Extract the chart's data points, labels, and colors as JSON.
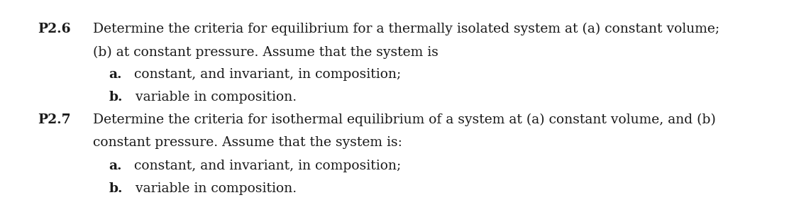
{
  "background_color": "#ffffff",
  "figsize": [
    11.12,
    2.82
  ],
  "dpi": 100,
  "font_family": "serif",
  "font_size": 13.5,
  "text_color": "#1a1a1a",
  "blocks": [
    {
      "label": "P2.6",
      "label_fx": 0.048,
      "label_fy": 0.87,
      "lines": [
        {
          "fx": 0.118,
          "fy": 0.87,
          "parts": [
            {
              "text": "Determine the criteria for equilibrium for a thermally isolated system at (a) constant volume;",
              "bold": false
            }
          ]
        },
        {
          "fx": 0.118,
          "fy": 0.685,
          "parts": [
            {
              "text": "(b) at constant pressure. Assume that the system is",
              "bold": false
            }
          ]
        },
        {
          "fx": 0.138,
          "fy": 0.505,
          "parts": [
            {
              "text": "a.",
              "bold": true
            },
            {
              "text": "  constant, and invariant, in composition;",
              "bold": false
            }
          ]
        },
        {
          "fx": 0.138,
          "fy": 0.325,
          "parts": [
            {
              "text": "b.",
              "bold": true
            },
            {
              "text": "  variable in composition.",
              "bold": false
            }
          ]
        }
      ]
    },
    {
      "label": "P2.7",
      "label_fx": 0.048,
      "label_fy": 0.145,
      "lines": [
        {
          "fx": 0.118,
          "fy": 0.145,
          "parts": [
            {
              "text": "Determine the criteria for isothermal equilibrium of a system at (a) constant volume, and (b)",
              "bold": false
            }
          ]
        },
        {
          "fx": 0.118,
          "fy": -0.04,
          "parts": [
            {
              "text": "constant pressure. Assume that the system is:",
              "bold": false
            }
          ]
        },
        {
          "fx": 0.138,
          "fy": -0.225,
          "parts": [
            {
              "text": "a.",
              "bold": true
            },
            {
              "text": "  constant, and invariant, in composition;",
              "bold": false
            }
          ]
        },
        {
          "fx": 0.138,
          "fy": -0.41,
          "parts": [
            {
              "text": "b.",
              "bold": true
            },
            {
              "text": "  variable in composition.",
              "bold": false
            }
          ]
        }
      ]
    }
  ]
}
